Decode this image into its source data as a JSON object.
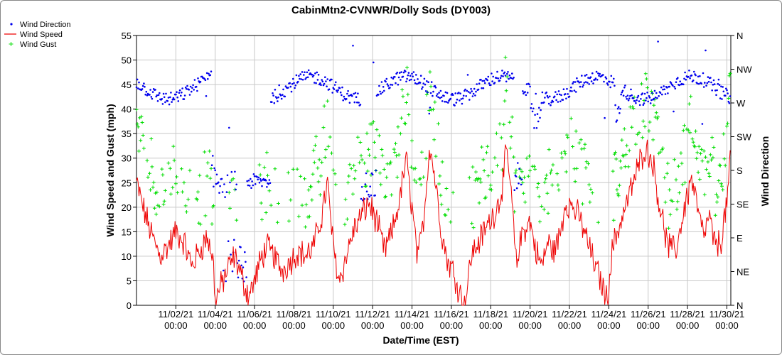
{
  "chart_data": {
    "type": "line",
    "title": "CabinMtn2-CVNWR/Dolly Sods (DY003)",
    "xlabel": "Date/Time (EST)",
    "ylabel": "Wind Speed and Gust (mph)",
    "y2label": "Wind Direction",
    "ylim": [
      0,
      55
    ],
    "yticks": [
      0,
      5,
      10,
      15,
      20,
      25,
      30,
      35,
      40,
      45,
      50,
      55
    ],
    "y2ticks": [
      "N",
      "NE",
      "E",
      "SE",
      "S",
      "SW",
      "W",
      "NW",
      "N"
    ],
    "xlim_days": [
      31,
      61.2
    ],
    "xticks": [
      {
        "day": 33,
        "line1": "11/02/21",
        "line2": "00:00"
      },
      {
        "day": 35,
        "line1": "11/04/21",
        "line2": "00:00"
      },
      {
        "day": 37,
        "line1": "11/06/21",
        "line2": "00:00"
      },
      {
        "day": 39,
        "line1": "11/08/21",
        "line2": "00:00"
      },
      {
        "day": 41,
        "line1": "11/10/21",
        "line2": "00:00"
      },
      {
        "day": 43,
        "line1": "11/12/21",
        "line2": "00:00"
      },
      {
        "day": 45,
        "line1": "11/14/21",
        "line2": "00:00"
      },
      {
        "day": 47,
        "line1": "11/16/21",
        "line2": "00:00"
      },
      {
        "day": 49,
        "line1": "11/18/21",
        "line2": "00:00"
      },
      {
        "day": 51,
        "line1": "11/20/21",
        "line2": "00:00"
      },
      {
        "day": 53,
        "line1": "11/22/21",
        "line2": "00:00"
      },
      {
        "day": 55,
        "line1": "11/24/21",
        "line2": "00:00"
      },
      {
        "day": 57,
        "line1": "11/26/21",
        "line2": "00:00"
      },
      {
        "day": 59,
        "line1": "11/28/21",
        "line2": "00:00"
      },
      {
        "day": 61,
        "line1": "11/30/21",
        "line2": "00:00"
      }
    ],
    "grid": true,
    "legend_position": "top-left outside",
    "series": [
      {
        "name": "Wind Direction",
        "kind": "points",
        "marker": "dot",
        "color": "#0000ee",
        "axis": "direction_deg"
      },
      {
        "name": "Wind Speed",
        "kind": "line",
        "color": "#ee0000",
        "axis": "mph"
      },
      {
        "name": "Wind Gust",
        "kind": "points",
        "marker": "plus",
        "color": "#00dd00",
        "axis": "mph"
      }
    ],
    "wind_speed_keypoints": [
      [
        31.0,
        25
      ],
      [
        31.4,
        19
      ],
      [
        31.8,
        14
      ],
      [
        32.2,
        10
      ],
      [
        32.6,
        12
      ],
      [
        33.0,
        15
      ],
      [
        33.4,
        13
      ],
      [
        33.8,
        8
      ],
      [
        34.2,
        11
      ],
      [
        34.6,
        14
      ],
      [
        34.9,
        9
      ],
      [
        35.0,
        1
      ],
      [
        35.3,
        4
      ],
      [
        35.7,
        8
      ],
      [
        36.0,
        10
      ],
      [
        36.4,
        5
      ],
      [
        36.7,
        2
      ],
      [
        37.0,
        5
      ],
      [
        37.3,
        9
      ],
      [
        37.6,
        12
      ],
      [
        38.0,
        10
      ],
      [
        38.4,
        7
      ],
      [
        38.8,
        9
      ],
      [
        39.2,
        11
      ],
      [
        39.6,
        10
      ],
      [
        40.0,
        12
      ],
      [
        40.4,
        18
      ],
      [
        40.7,
        25
      ],
      [
        41.0,
        12
      ],
      [
        41.3,
        5
      ],
      [
        41.6,
        9
      ],
      [
        42.0,
        15
      ],
      [
        42.4,
        18
      ],
      [
        42.8,
        21
      ],
      [
        43.2,
        17
      ],
      [
        43.6,
        11
      ],
      [
        44.0,
        15
      ],
      [
        44.4,
        22
      ],
      [
        44.7,
        30
      ],
      [
        45.0,
        20
      ],
      [
        45.3,
        9
      ],
      [
        45.6,
        18
      ],
      [
        45.9,
        33
      ],
      [
        46.2,
        25
      ],
      [
        46.5,
        15
      ],
      [
        46.8,
        9
      ],
      [
        47.1,
        7
      ],
      [
        47.4,
        3
      ],
      [
        47.7,
        0
      ],
      [
        48.0,
        10
      ],
      [
        48.4,
        13
      ],
      [
        48.8,
        16
      ],
      [
        49.2,
        19
      ],
      [
        49.5,
        22
      ],
      [
        49.8,
        31
      ],
      [
        50.0,
        25
      ],
      [
        50.3,
        8
      ],
      [
        50.6,
        15
      ],
      [
        51.0,
        17
      ],
      [
        51.3,
        11
      ],
      [
        51.6,
        8
      ],
      [
        51.9,
        13
      ],
      [
        52.2,
        11
      ],
      [
        52.5,
        14
      ],
      [
        52.8,
        21
      ],
      [
        53.2,
        20
      ],
      [
        53.6,
        17
      ],
      [
        54.0,
        12
      ],
      [
        54.3,
        8
      ],
      [
        54.6,
        5
      ],
      [
        54.9,
        1
      ],
      [
        55.2,
        12
      ],
      [
        55.6,
        17
      ],
      [
        56.0,
        22
      ],
      [
        56.4,
        27
      ],
      [
        56.8,
        32
      ],
      [
        57.2,
        30
      ],
      [
        57.6,
        20
      ],
      [
        58.0,
        12
      ],
      [
        58.4,
        11
      ],
      [
        58.8,
        19
      ],
      [
        59.2,
        26
      ],
      [
        59.5,
        20
      ],
      [
        59.8,
        14
      ],
      [
        60.1,
        18
      ],
      [
        60.4,
        12
      ],
      [
        60.7,
        13
      ],
      [
        61.0,
        21
      ],
      [
        61.2,
        30
      ]
    ],
    "wind_direction_hourly_deg_sample": "approx. 300-330 degrees (NW) for most of the period, with drops to 90-180 degrees around 11/04-11/06 and 11/11-11/12"
  }
}
